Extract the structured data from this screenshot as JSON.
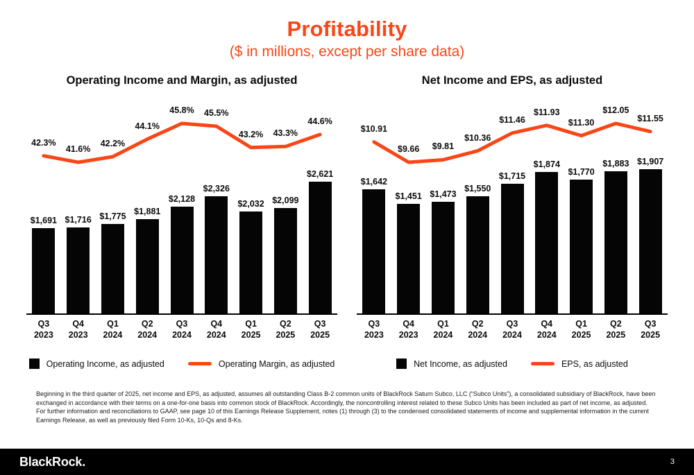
{
  "slide": {
    "title": "Profitability",
    "subtitle": "($ in millions, except per share data)",
    "colors": {
      "accent": "#FA4616",
      "bar": "#050505"
    },
    "footnote": "Beginning in the third quarter of 2025, net income and EPS, as adjusted, assumes all outstanding Class B-2 common units of BlackRock Saturn Subco, LLC (“Subco Units”), a consolidated subsidiary of BlackRock, have been exchanged in accordance with their terms on a one-for-one basis into common stock of BlackRock. Accordingly, the noncontrolling interest related to these Subco Units has been included as part of net income, as adjusted. For further information and reconciliations to GAAP, see page 10 of this Earnings Release Supplement, notes (1) through (3) to the condensed consolidated statements of income and supplemental information in the current Earnings Release, as well as previously filed Form 10-Ks, 10-Qs and 8-Ks.",
    "footer": {
      "brand": "BlackRock.",
      "page_number": "3"
    }
  },
  "chart_data": [
    {
      "type": "bar",
      "title": "Operating Income and Margin, as adjusted",
      "categories": [
        "Q3\n2023",
        "Q4\n2023",
        "Q1\n2024",
        "Q2\n2024",
        "Q3\n2024",
        "Q4\n2024",
        "Q1\n2025",
        "Q2\n2025",
        "Q3\n2025"
      ],
      "grid": false,
      "legend_position": "bottom",
      "series": [
        {
          "name": "Operating Income, as adjusted",
          "type": "bar",
          "values": [
            1691,
            1716,
            1775,
            1881,
            2128,
            2326,
            2032,
            2099,
            2621
          ],
          "labels": [
            "$1,691",
            "$1,716",
            "$1,775",
            "$1,881",
            "$2,128",
            "$2,326",
            "$2,032",
            "$2,099",
            "$2,621"
          ]
        },
        {
          "name": "Operating Margin, as adjusted",
          "type": "line",
          "values": [
            42.3,
            41.6,
            42.2,
            44.1,
            45.8,
            45.5,
            43.2,
            43.3,
            44.6
          ],
          "labels": [
            "42.3%",
            "41.6%",
            "42.2%",
            "44.1%",
            "45.8%",
            "45.5%",
            "43.2%",
            "43.3%",
            "44.6%"
          ]
        }
      ]
    },
    {
      "type": "bar",
      "title": "Net Income and EPS, as adjusted",
      "categories": [
        "Q3\n2023",
        "Q4\n2023",
        "Q1\n2024",
        "Q2\n2024",
        "Q3\n2024",
        "Q4\n2024",
        "Q1\n2025",
        "Q2\n2025",
        "Q3\n2025"
      ],
      "grid": false,
      "legend_position": "bottom",
      "series": [
        {
          "name": "Net Income, as adjusted",
          "type": "bar",
          "values": [
            1642,
            1451,
            1473,
            1550,
            1715,
            1874,
            1770,
            1883,
            1907
          ],
          "labels": [
            "$1,642",
            "$1,451",
            "$1,473",
            "$1,550",
            "$1,715",
            "$1,874",
            "$1,770",
            "$1,883",
            "$1,907"
          ]
        },
        {
          "name": "EPS, as adjusted",
          "type": "line",
          "values": [
            10.91,
            9.66,
            9.81,
            10.36,
            11.46,
            11.93,
            11.3,
            12.05,
            11.55
          ],
          "labels": [
            "$10.91",
            "$9.66",
            "$9.81",
            "$10.36",
            "$11.46",
            "$11.93",
            "$11.30",
            "$12.05",
            "$11.55"
          ]
        }
      ]
    }
  ]
}
